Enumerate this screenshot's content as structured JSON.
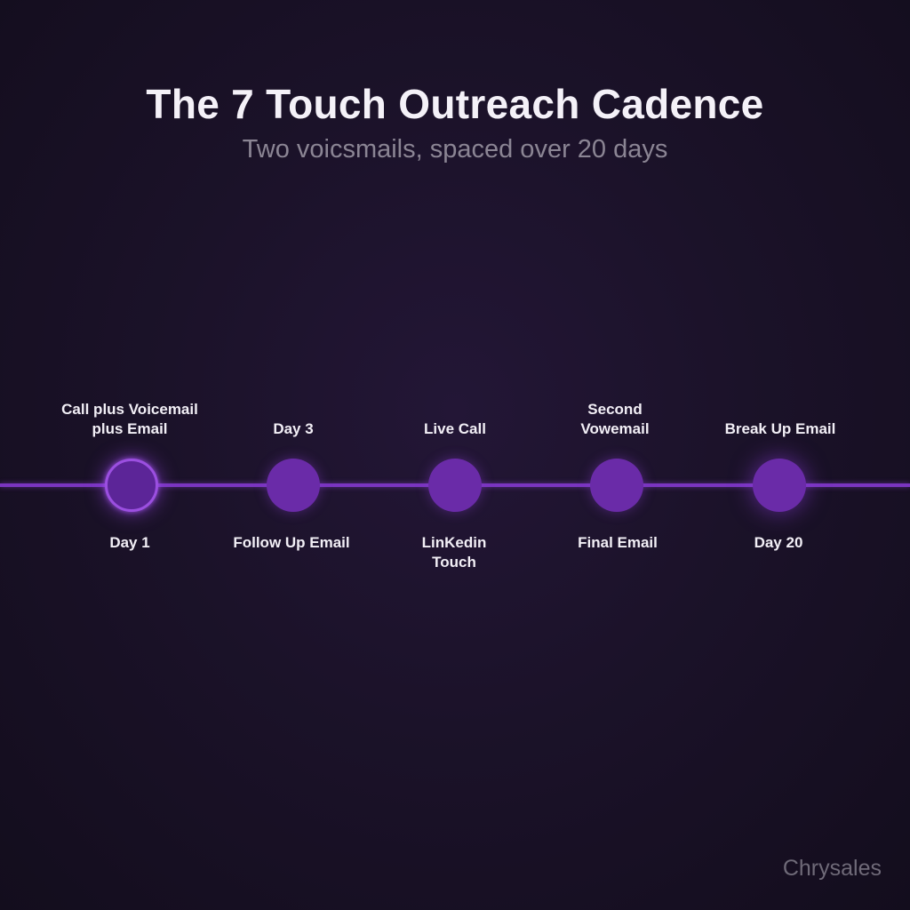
{
  "title": "The 7 Touch Outreach Cadence",
  "subtitle": "Two voicsmails, spaced over 20 days",
  "brand": "Chrysales",
  "colors": {
    "background": "#1b1229",
    "accent": "#7a35c0",
    "node": "#6a2ba8"
  },
  "steps": [
    {
      "top": "Call plus Voicemail\nplus Email",
      "bottom": "Day 1"
    },
    {
      "top": "Day 3",
      "bottom": "Follow Up Email"
    },
    {
      "top": "Live Call",
      "bottom": "LinKedin\nTouch"
    },
    {
      "top": "Second\nVowemail",
      "bottom": "Final Email"
    },
    {
      "top": "Break Up Email",
      "bottom": "Day 20"
    }
  ]
}
